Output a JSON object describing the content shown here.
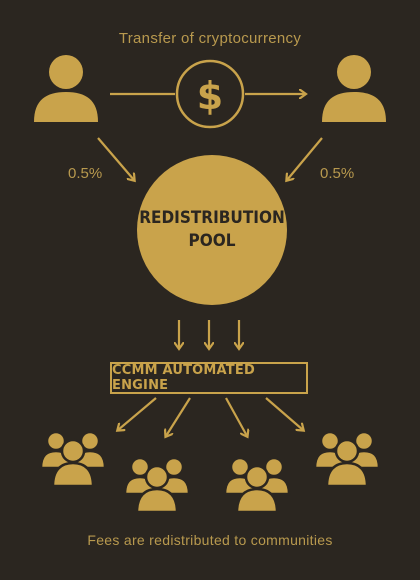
{
  "diagram": {
    "top_caption": "Transfer of cryptocurrency",
    "fee_left": "0.5%",
    "fee_right": "0.5%",
    "pool_line1": "REDISTRIBUTION",
    "pool_line2": "POOL",
    "engine_label": "CCMM AUTOMATED ENGINE",
    "bottom_caption": "Fees are redistributed to communities",
    "currency_symbol": "$"
  },
  "colors": {
    "background": "#2b2620",
    "accent": "#c9a34b",
    "text": "#b8994e"
  },
  "icons": [
    "user-icon",
    "dollar-coin-icon",
    "group-icon",
    "arrow-icon"
  ]
}
